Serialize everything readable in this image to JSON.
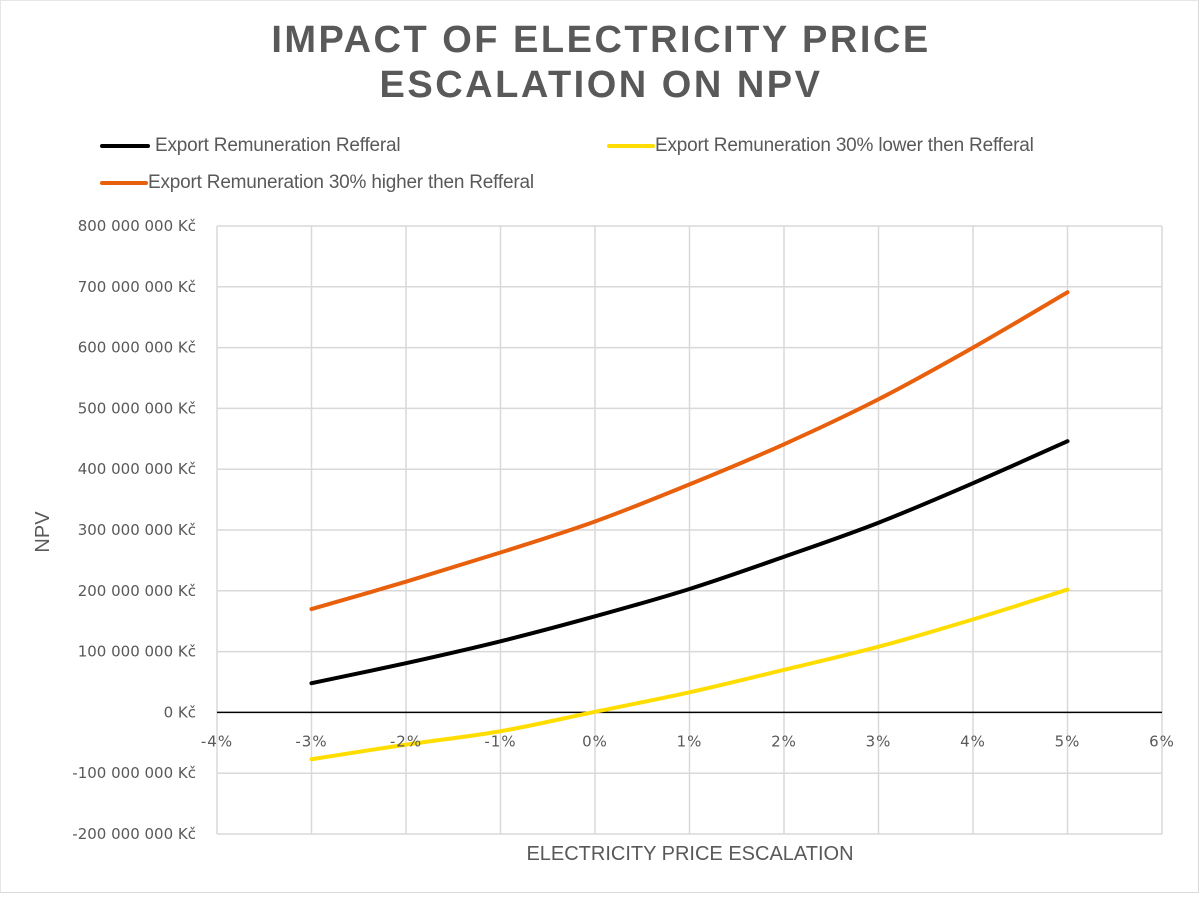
{
  "chart_data": {
    "type": "line",
    "title": "IMPACT OF ELECTRICITY PRICE ESCALATION ON NPV",
    "title_lines": [
      "IMPACT OF ELECTRICITY PRICE",
      "ESCALATION ON NPV"
    ],
    "xlabel": "ELECTRICITY PRICE ESCALATION",
    "ylabel": "NPV",
    "xlim": [
      -0.04,
      0.06
    ],
    "ylim": [
      -200000000,
      800000000
    ],
    "x_ticks": [
      -0.04,
      -0.03,
      -0.02,
      -0.01,
      0,
      0.01,
      0.02,
      0.03,
      0.04,
      0.05,
      0.06
    ],
    "x_tick_labels": [
      "-4%",
      "-3%",
      "-2%",
      "-1%",
      "0%",
      "1%",
      "2%",
      "3%",
      "4%",
      "5%",
      "6%"
    ],
    "y_ticks": [
      800000000,
      700000000,
      600000000,
      500000000,
      400000000,
      300000000,
      200000000,
      100000000,
      0,
      -100000000,
      -200000000
    ],
    "y_tick_labels": [
      "800 000 000 Kč",
      "700 000 000 Kč",
      "600 000 000 Kč",
      "500 000 000 Kč",
      "400 000 000 Kč",
      "300 000 000 Kč",
      "200 000 000 Kč",
      "100 000 000 Kč",
      "0 Kč",
      "-100 000 000 Kč",
      "-200 000 000 Kč"
    ],
    "grid": true,
    "legend_position": "top",
    "x": [
      -0.03,
      -0.02,
      -0.01,
      0,
      0.01,
      0.02,
      0.03,
      0.04,
      0.05
    ],
    "series": [
      {
        "name": "Export Remuneration Refferal",
        "color": "#000000",
        "values": [
          48000000,
          81000000,
          117000000,
          158000000,
          203000000,
          256000000,
          312000000,
          377000000,
          446000000
        ]
      },
      {
        "name": "Export Remuneration 30% lower then Refferal",
        "color": "#ffdd00",
        "values": [
          -77000000,
          -53000000,
          -31000000,
          1000000,
          33000000,
          70000000,
          108000000,
          153000000,
          202000000
        ]
      },
      {
        "name": "Export Remuneration 30% higher then Refferal",
        "color": "#e8600c",
        "values": [
          170000000,
          215000000,
          263000000,
          314000000,
          375000000,
          441000000,
          515000000,
          600000000,
          691000000
        ]
      }
    ]
  },
  "legend": [
    {
      "label": "Export Remuneration Refferal",
      "color": "#000000"
    },
    {
      "label": "Export Remuneration 30% lower then Refferal",
      "color": "#ffdd00"
    },
    {
      "label": "Export Remuneration 30% higher then Refferal",
      "color": "#e8600c"
    }
  ],
  "colors": {
    "text": "#595959",
    "grid": "#d9d9d9",
    "zero_axis": "#000000"
  }
}
